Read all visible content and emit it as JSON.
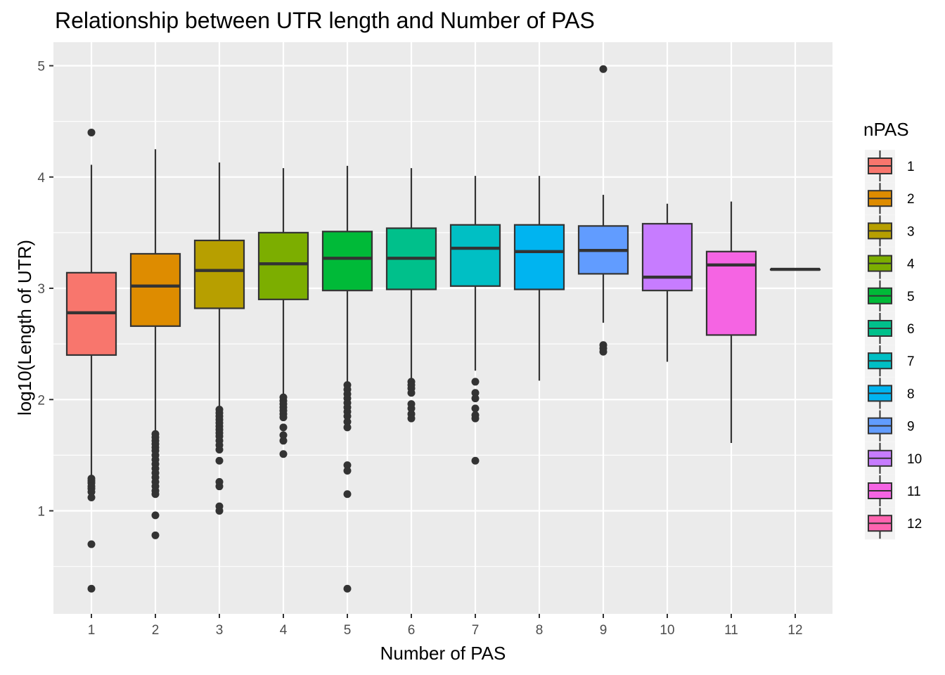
{
  "chart_data": {
    "type": "boxplot",
    "title": "Relationship between UTR length and Number of PAS",
    "xlabel": "Number of PAS",
    "ylabel": "log10(Length of UTR)",
    "ylim": [
      0.1,
      5.2
    ],
    "yticks": [
      1,
      2,
      3,
      4,
      5
    ],
    "grid": true,
    "legend": {
      "title": "nPAS",
      "position": "right"
    },
    "categories": [
      "1",
      "2",
      "3",
      "4",
      "5",
      "6",
      "7",
      "8",
      "9",
      "10",
      "11",
      "12"
    ],
    "colors": [
      "#F8766D",
      "#DE8C00",
      "#B79F00",
      "#7CAE00",
      "#00BA38",
      "#00C08B",
      "#00BFC4",
      "#00B4F0",
      "#619CFF",
      "#C77CFF",
      "#F564E3",
      "#FF64B0"
    ],
    "series": [
      {
        "name": "1",
        "whisker_low": 1.3,
        "q1": 2.4,
        "median": 2.78,
        "q3": 3.14,
        "whisker_high": 4.11,
        "outliers": [
          4.4,
          1.29,
          1.27,
          1.25,
          1.22,
          1.2,
          1.17,
          1.12,
          0.7,
          0.3
        ]
      },
      {
        "name": "2",
        "whisker_low": 1.7,
        "q1": 2.66,
        "median": 3.02,
        "q3": 3.31,
        "whisker_high": 4.25,
        "outliers": [
          1.69,
          1.66,
          1.63,
          1.6,
          1.57,
          1.54,
          1.5,
          1.46,
          1.42,
          1.38,
          1.34,
          1.3,
          1.26,
          1.22,
          1.18,
          1.15,
          0.96,
          0.78
        ]
      },
      {
        "name": "3",
        "whisker_low": 1.92,
        "q1": 2.82,
        "median": 3.16,
        "q3": 3.43,
        "whisker_high": 4.13,
        "outliers": [
          1.91,
          1.88,
          1.85,
          1.82,
          1.79,
          1.76,
          1.73,
          1.7,
          1.67,
          1.63,
          1.59,
          1.55,
          1.45,
          1.26,
          1.22,
          1.04,
          1.0
        ]
      },
      {
        "name": "4",
        "whisker_low": 2.03,
        "q1": 2.9,
        "median": 3.22,
        "q3": 3.5,
        "whisker_high": 4.08,
        "outliers": [
          2.02,
          1.99,
          1.96,
          1.93,
          1.9,
          1.87,
          1.84,
          1.75,
          1.68,
          1.63,
          1.51
        ]
      },
      {
        "name": "5",
        "whisker_low": 2.15,
        "q1": 2.98,
        "median": 3.27,
        "q3": 3.51,
        "whisker_high": 4.1,
        "outliers": [
          2.13,
          2.09,
          2.05,
          2.01,
          1.97,
          1.93,
          1.89,
          1.85,
          1.8,
          1.75,
          1.41,
          1.36,
          1.15,
          0.3
        ]
      },
      {
        "name": "6",
        "whisker_low": 2.18,
        "q1": 2.99,
        "median": 3.27,
        "q3": 3.54,
        "whisker_high": 4.08,
        "outliers": [
          2.16,
          2.13,
          2.1,
          2.06,
          1.96,
          1.92,
          1.87,
          1.83
        ]
      },
      {
        "name": "7",
        "whisker_low": 2.26,
        "q1": 3.02,
        "median": 3.36,
        "q3": 3.57,
        "whisker_high": 4.01,
        "outliers": [
          2.16,
          2.06,
          2.01,
          1.92,
          1.86,
          1.83,
          1.45
        ]
      },
      {
        "name": "8",
        "whisker_low": 2.17,
        "q1": 2.99,
        "median": 3.33,
        "q3": 3.57,
        "whisker_high": 4.01,
        "outliers": []
      },
      {
        "name": "9",
        "whisker_low": 2.69,
        "q1": 3.13,
        "median": 3.34,
        "q3": 3.56,
        "whisker_high": 3.84,
        "outliers": [
          4.97,
          2.49,
          2.46,
          2.43
        ]
      },
      {
        "name": "10",
        "whisker_low": 2.34,
        "q1": 2.98,
        "median": 3.1,
        "q3": 3.58,
        "whisker_high": 3.76,
        "outliers": []
      },
      {
        "name": "11",
        "whisker_low": 1.61,
        "q1": 2.58,
        "median": 3.21,
        "q3": 3.33,
        "whisker_high": 3.78,
        "outliers": []
      },
      {
        "name": "12",
        "whisker_low": 3.17,
        "q1": 3.17,
        "median": 3.17,
        "q3": 3.17,
        "whisker_high": 3.17,
        "outliers": []
      }
    ]
  }
}
